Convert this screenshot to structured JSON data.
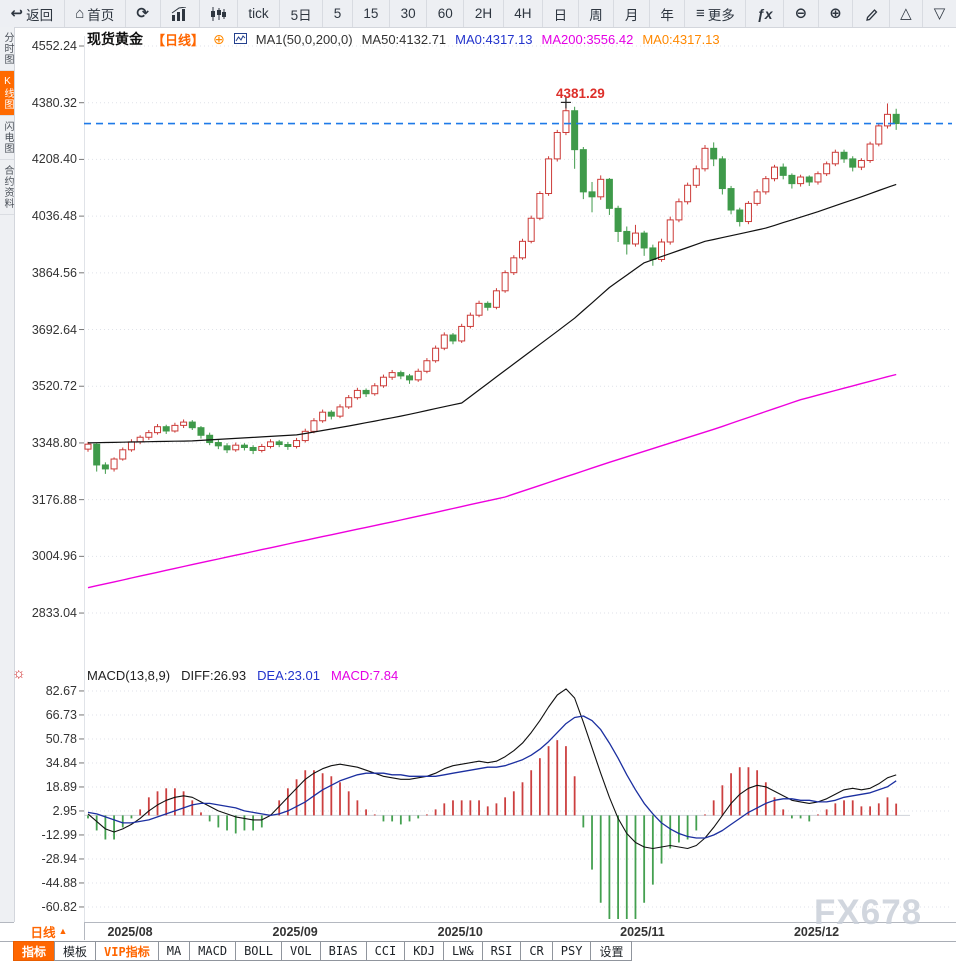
{
  "topbar": {
    "items": [
      {
        "name": "back-button",
        "label": "返回",
        "icon": "back"
      },
      {
        "name": "home-button",
        "label": "首页",
        "icon": "home"
      },
      {
        "name": "refresh-button",
        "label": "",
        "icon": "refresh"
      },
      {
        "name": "bar-chart-button",
        "label": "",
        "icon": "bar-chart"
      },
      {
        "name": "candle-chart-button",
        "label": "",
        "icon": "candles"
      },
      {
        "name": "interval-tick",
        "label": "tick",
        "icon": null
      },
      {
        "name": "interval-5d",
        "label": "5日",
        "icon": null
      },
      {
        "name": "interval-5",
        "label": "5",
        "icon": null
      },
      {
        "name": "interval-15",
        "label": "15",
        "icon": null
      },
      {
        "name": "interval-30",
        "label": "30",
        "icon": null
      },
      {
        "name": "interval-60",
        "label": "60",
        "icon": null
      },
      {
        "name": "interval-2h",
        "label": "2H",
        "icon": null
      },
      {
        "name": "interval-4h",
        "label": "4H",
        "icon": null
      },
      {
        "name": "interval-day",
        "label": "日",
        "icon": null
      },
      {
        "name": "interval-week",
        "label": "周",
        "icon": null
      },
      {
        "name": "interval-month",
        "label": "月",
        "icon": null
      },
      {
        "name": "interval-year",
        "label": "年",
        "icon": null
      },
      {
        "name": "more-button",
        "label": "更多",
        "icon": "menu"
      },
      {
        "name": "indicator-fx-button",
        "label": "",
        "icon": "fx"
      },
      {
        "name": "zoom-out-button",
        "label": "",
        "icon": "zoom-out"
      },
      {
        "name": "zoom-in-button",
        "label": "",
        "icon": "zoom-in"
      },
      {
        "name": "draw-button",
        "label": "",
        "icon": "pencil"
      },
      {
        "name": "collapse-up-button",
        "label": "",
        "icon": "tri-up"
      },
      {
        "name": "collapse-down-button",
        "label": "",
        "icon": "tri-down"
      }
    ]
  },
  "sidebar": {
    "items": [
      {
        "label": "分时图",
        "active": false
      },
      {
        "label": "K线图",
        "active": true
      },
      {
        "label": "闪电图",
        "active": false
      },
      {
        "label": "合约资料",
        "active": false
      }
    ]
  },
  "chart_header": {
    "symbol": "现货黄金",
    "period": "【日线】",
    "add_icon": "⊕",
    "ma_settings": "MA1(50,0,200,0)",
    "ma50": "MA50:4132.71",
    "ma0_blue": "MA0:4317.13",
    "ma200": "MA200:3556.42",
    "ma0_orange": "MA0:4317.13"
  },
  "macd_header": {
    "title": "MACD(13,8,9)",
    "diff": "DIFF:26.93",
    "dea": "DEA:23.01",
    "macd": "MACD:7.84"
  },
  "x_axis": {
    "period_selector": "日线",
    "period_arrow": "▲"
  },
  "bottom_tabs": [
    {
      "label": "指标",
      "variant": "active"
    },
    {
      "label": "模板",
      "variant": "normal"
    },
    {
      "label": "VIP指标",
      "variant": "vip"
    },
    {
      "label": "MA",
      "variant": "normal"
    },
    {
      "label": "MACD",
      "variant": "normal"
    },
    {
      "label": "BOLL",
      "variant": "normal"
    },
    {
      "label": "VOL",
      "variant": "normal"
    },
    {
      "label": "BIAS",
      "variant": "normal"
    },
    {
      "label": "CCI",
      "variant": "normal"
    },
    {
      "label": "KDJ",
      "variant": "normal"
    },
    {
      "label": "LW&",
      "variant": "normal"
    },
    {
      "label": "RSI",
      "variant": "normal"
    },
    {
      "label": "CR",
      "variant": "normal"
    },
    {
      "label": "PSY",
      "variant": "normal"
    },
    {
      "label": "设置",
      "variant": "normal"
    }
  ],
  "watermark": "FX678",
  "colors": {
    "up": "#cc3b38",
    "down": "#3f9a4a",
    "ma50": "#111111",
    "ma200": "#ee00dd",
    "diff": "#111111",
    "dea": "#1b2fa0",
    "hist_up": "#cc4040",
    "hist_down": "#44a050",
    "dashed_price_line": "#1e7ae8",
    "accent_orange": "#ff6600",
    "grid": "#dfe2e9",
    "axis_text": "#333333"
  },
  "chart_data": {
    "type": "candlestick+macd",
    "title": "现货黄金 日线 (Spot Gold Daily)",
    "peak_label": "4381.29",
    "peak_price": 4381.29,
    "peak_index": 55,
    "current_price": 4317.13,
    "price_axis_labels": [
      "4552.24",
      "4380.32",
      "4208.40",
      "4036.48",
      "3864.56",
      "3692.64",
      "3520.72",
      "3348.80",
      "3176.88",
      "3004.96",
      "2833.04"
    ],
    "macd_axis_labels": [
      "82.67",
      "66.73",
      "50.78",
      "34.84",
      "18.89",
      "2.95",
      "-12.99",
      "-28.94",
      "-44.88",
      "-60.82"
    ],
    "month_ticks": [
      {
        "label": "2025/08",
        "index": 5
      },
      {
        "label": "2025/09",
        "index": 24
      },
      {
        "label": "2025/10",
        "index": 43
      },
      {
        "label": "2025/11",
        "index": 64
      },
      {
        "label": "2025/12",
        "index": 84
      }
    ],
    "candles": [
      [
        3330,
        3352,
        3322,
        3345
      ],
      [
        3345,
        3348,
        3262,
        3282
      ],
      [
        3282,
        3290,
        3255,
        3270
      ],
      [
        3270,
        3305,
        3262,
        3300
      ],
      [
        3300,
        3335,
        3295,
        3328
      ],
      [
        3328,
        3360,
        3322,
        3352
      ],
      [
        3352,
        3372,
        3345,
        3366
      ],
      [
        3366,
        3388,
        3358,
        3380
      ],
      [
        3380,
        3406,
        3374,
        3398
      ],
      [
        3398,
        3404,
        3376,
        3385
      ],
      [
        3385,
        3410,
        3380,
        3402
      ],
      [
        3402,
        3420,
        3394,
        3412
      ],
      [
        3412,
        3418,
        3388,
        3395
      ],
      [
        3395,
        3400,
        3362,
        3372
      ],
      [
        3372,
        3380,
        3342,
        3350
      ],
      [
        3350,
        3358,
        3330,
        3340
      ],
      [
        3340,
        3348,
        3318,
        3328
      ],
      [
        3328,
        3350,
        3322,
        3342
      ],
      [
        3342,
        3348,
        3326,
        3335
      ],
      [
        3335,
        3342,
        3315,
        3326
      ],
      [
        3326,
        3346,
        3320,
        3338
      ],
      [
        3338,
        3360,
        3332,
        3352
      ],
      [
        3352,
        3358,
        3336,
        3344
      ],
      [
        3344,
        3352,
        3328,
        3338
      ],
      [
        3338,
        3364,
        3332,
        3356
      ],
      [
        3356,
        3392,
        3350,
        3384
      ],
      [
        3384,
        3424,
        3378,
        3416
      ],
      [
        3416,
        3450,
        3410,
        3442
      ],
      [
        3442,
        3448,
        3420,
        3430
      ],
      [
        3430,
        3466,
        3424,
        3458
      ],
      [
        3458,
        3494,
        3452,
        3486
      ],
      [
        3486,
        3516,
        3480,
        3508
      ],
      [
        3508,
        3514,
        3488,
        3498
      ],
      [
        3498,
        3530,
        3492,
        3522
      ],
      [
        3522,
        3556,
        3516,
        3548
      ],
      [
        3548,
        3570,
        3540,
        3562
      ],
      [
        3562,
        3568,
        3542,
        3552
      ],
      [
        3552,
        3558,
        3528,
        3540
      ],
      [
        3540,
        3574,
        3534,
        3566
      ],
      [
        3566,
        3606,
        3560,
        3598
      ],
      [
        3598,
        3644,
        3592,
        3636
      ],
      [
        3636,
        3684,
        3630,
        3676
      ],
      [
        3676,
        3682,
        3648,
        3658
      ],
      [
        3658,
        3710,
        3652,
        3702
      ],
      [
        3702,
        3744,
        3696,
        3736
      ],
      [
        3736,
        3780,
        3730,
        3772
      ],
      [
        3772,
        3778,
        3750,
        3760
      ],
      [
        3760,
        3818,
        3754,
        3810
      ],
      [
        3810,
        3872,
        3804,
        3865
      ],
      [
        3865,
        3918,
        3858,
        3910
      ],
      [
        3910,
        3968,
        3904,
        3960
      ],
      [
        3960,
        4038,
        3954,
        4030
      ],
      [
        4030,
        4112,
        4024,
        4105
      ],
      [
        4105,
        4218,
        4098,
        4210
      ],
      [
        4210,
        4298,
        4202,
        4290
      ],
      [
        4290,
        4381.29,
        4282,
        4356
      ],
      [
        4356,
        4368,
        4180,
        4238
      ],
      [
        4238,
        4246,
        4088,
        4110
      ],
      [
        4110,
        4140,
        4048,
        4095
      ],
      [
        4095,
        4160,
        4086,
        4148
      ],
      [
        4148,
        4152,
        4040,
        4060
      ],
      [
        4060,
        4068,
        3958,
        3990
      ],
      [
        3990,
        4005,
        3920,
        3952
      ],
      [
        3952,
        4010,
        3944,
        3985
      ],
      [
        3985,
        3992,
        3916,
        3940
      ],
      [
        3940,
        3950,
        3886,
        3905
      ],
      [
        3905,
        3968,
        3898,
        3958
      ],
      [
        3958,
        4035,
        3950,
        4025
      ],
      [
        4025,
        4090,
        4018,
        4080
      ],
      [
        4080,
        4138,
        4072,
        4130
      ],
      [
        4130,
        4190,
        4122,
        4180
      ],
      [
        4180,
        4252,
        4172,
        4242
      ],
      [
        4242,
        4260,
        4188,
        4210
      ],
      [
        4210,
        4218,
        4102,
        4120
      ],
      [
        4120,
        4128,
        4042,
        4055
      ],
      [
        4055,
        4062,
        4005,
        4020
      ],
      [
        4020,
        4082,
        4012,
        4075
      ],
      [
        4075,
        4118,
        4068,
        4110
      ],
      [
        4110,
        4158,
        4102,
        4150
      ],
      [
        4150,
        4192,
        4142,
        4185
      ],
      [
        4185,
        4196,
        4148,
        4160
      ],
      [
        4160,
        4166,
        4120,
        4135
      ],
      [
        4135,
        4162,
        4126,
        4155
      ],
      [
        4155,
        4160,
        4128,
        4140
      ],
      [
        4140,
        4172,
        4132,
        4165
      ],
      [
        4165,
        4202,
        4158,
        4195
      ],
      [
        4195,
        4238,
        4188,
        4230
      ],
      [
        4230,
        4238,
        4198,
        4210
      ],
      [
        4210,
        4218,
        4172,
        4185
      ],
      [
        4185,
        4212,
        4176,
        4205
      ],
      [
        4205,
        4262,
        4198,
        4255
      ],
      [
        4255,
        4318,
        4248,
        4310
      ],
      [
        4310,
        4378,
        4302,
        4345
      ],
      [
        4345,
        4362,
        4298,
        4317.13
      ]
    ],
    "ma50": [
      3349,
      3349.5,
      3350,
      3350.5,
      3351,
      3351.5,
      3352,
      3352.5,
      3353,
      3353.5,
      3354,
      3354.5,
      3355,
      3356.5,
      3358,
      3359.5,
      3361,
      3362.5,
      3364,
      3365.5,
      3367,
      3368.5,
      3370,
      3371.5,
      3373,
      3377.5,
      3382,
      3386.5,
      3391,
      3395.5,
      3400,
      3405,
      3410,
      3415,
      3420,
      3425,
      3430,
      3435.7,
      3441.4,
      3447.1,
      3452.9,
      3458.6,
      3464.3,
      3470,
      3489.7,
      3509.4,
      3529.1,
      3548.9,
      3568.6,
      3588.3,
      3608,
      3627.8,
      3647.7,
      3667.5,
      3687.3,
      3707.2,
      3727,
      3750.3,
      3773.5,
      3796.8,
      3820,
      3838.8,
      3857.5,
      3876.3,
      3895,
      3904.3,
      3913.6,
      3922.9,
      3932.1,
      3941.4,
      3950.7,
      3960,
      3965.7,
      3971.4,
      3977.1,
      3982.9,
      3988.6,
      3994.3,
      4000,
      4008.3,
      4016.7,
      4025,
      4033.3,
      4041.7,
      4050,
      4059,
      4068,
      4077,
      4086,
      4095,
      4104.5,
      4114,
      4123.5,
      4132.71
    ],
    "ma200": [
      2910,
      2915.8,
      2921.7,
      2927.5,
      2933.3,
      2939.2,
      2945,
      2950.8,
      2956.7,
      2962.5,
      2968.3,
      2974.2,
      2980,
      2985.7,
      2991.3,
      2997,
      3002.7,
      3008.3,
      3014,
      3019.7,
      3025.3,
      3031,
      3036.7,
      3042.3,
      3048,
      3053.6,
      3059.2,
      3064.8,
      3070.3,
      3075.9,
      3081.5,
      3087.1,
      3092.7,
      3098.3,
      3103.8,
      3109.4,
      3115,
      3120.8,
      3126.7,
      3132.5,
      3138.3,
      3144.2,
      3150,
      3155.8,
      3161.7,
      3167.5,
      3173.3,
      3179.2,
      3185,
      3193.8,
      3202.5,
      3211.3,
      3220,
      3228.8,
      3237.5,
      3246.3,
      3255,
      3263.8,
      3272.5,
      3281.3,
      3290,
      3298.3,
      3306.7,
      3315,
      3323.3,
      3331.7,
      3340,
      3348.3,
      3356.7,
      3365,
      3373.3,
      3381.7,
      3390,
      3399,
      3408,
      3417,
      3426,
      3435,
      3444,
      3453,
      3462,
      3471,
      3480,
      3486.9,
      3493.9,
      3500.8,
      3507.8,
      3514.7,
      3521.7,
      3528.6,
      3535.6,
      3542.5,
      3549.5,
      3556.42
    ],
    "macd": {
      "diff": [
        1,
        -4,
        -9,
        -11,
        -9,
        -6,
        -2,
        3,
        7,
        10,
        12,
        13,
        12,
        9,
        6,
        3,
        1,
        -1,
        -2,
        -3,
        -3,
        0,
        6,
        12,
        18,
        24,
        28,
        31,
        33,
        34,
        33,
        32,
        30,
        28,
        26,
        25,
        24,
        24,
        25,
        26,
        28,
        31,
        33,
        34,
        35,
        36,
        35,
        36,
        39,
        43,
        48,
        55,
        63,
        72,
        80,
        84,
        78,
        62,
        45,
        28,
        12,
        -2,
        -12,
        -18,
        -21,
        -22,
        -21,
        -20,
        -21,
        -22,
        -20,
        -15,
        -8,
        0,
        8,
        14,
        18,
        20,
        19,
        16,
        13,
        10,
        9,
        8,
        9,
        11,
        14,
        17,
        18,
        17,
        18,
        21,
        25,
        26.93
      ],
      "dea": [
        2,
        1,
        -1,
        -3,
        -5,
        -5,
        -4,
        -3,
        -1,
        1,
        3,
        5,
        7,
        8,
        8,
        7,
        6,
        5,
        3,
        2,
        1,
        0,
        1,
        3,
        6,
        9,
        13,
        17,
        20,
        23,
        25,
        27,
        28,
        28,
        28,
        27,
        27,
        26,
        26,
        26,
        26,
        27,
        28,
        29,
        30,
        31,
        32,
        32,
        33,
        35,
        37,
        40,
        44,
        49,
        55,
        61,
        65,
        66,
        63,
        57,
        48,
        38,
        27,
        17,
        8,
        1,
        -5,
        -9,
        -12,
        -14,
        -15,
        -15,
        -13,
        -10,
        -6,
        -2,
        2,
        5,
        8,
        10,
        11,
        11,
        10,
        10,
        9,
        9,
        10,
        12,
        13,
        14,
        15,
        17,
        19,
        23.01
      ],
      "hist": [
        -2,
        -10,
        -16,
        -16,
        -8,
        -2,
        4,
        12,
        16,
        18,
        18,
        16,
        10,
        2,
        -4,
        -8,
        -10,
        -12,
        -10,
        -10,
        -8,
        0,
        10,
        18,
        24,
        30,
        30,
        28,
        26,
        22,
        16,
        10,
        4,
        0,
        -4,
        -4,
        -6,
        -4,
        -2,
        0,
        4,
        8,
        10,
        10,
        10,
        10,
        6,
        8,
        12,
        16,
        22,
        30,
        38,
        46,
        50,
        46,
        26,
        -8,
        -36,
        -58,
        -72,
        -80,
        -78,
        -70,
        -58,
        -46,
        -32,
        -22,
        -18,
        -16,
        -10,
        0,
        10,
        20,
        28,
        32,
        32,
        30,
        22,
        12,
        4,
        -2,
        -2,
        -4,
        0,
        4,
        8,
        10,
        10,
        6,
        6,
        8,
        12,
        7.84
      ]
    }
  }
}
